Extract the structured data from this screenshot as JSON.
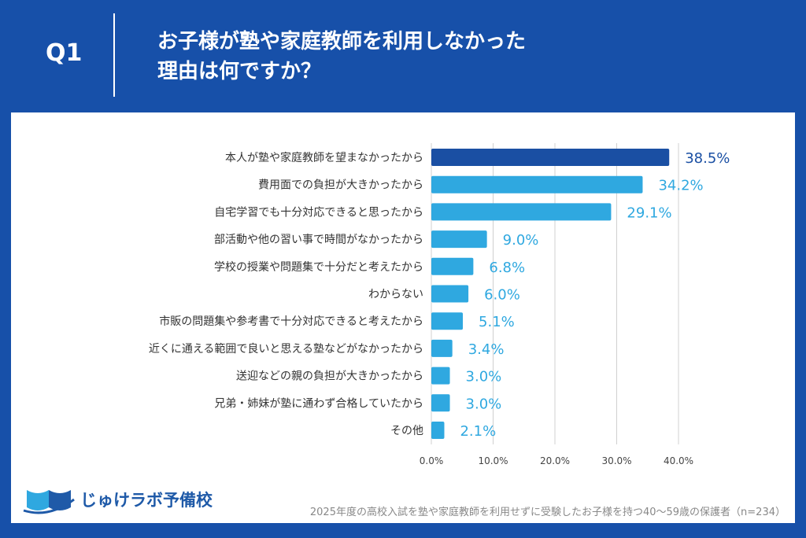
{
  "header": {
    "q_label": "Q1",
    "title_line1": "お子様が塾や家庭教師を利用しなかった",
    "title_line2": "理由は何ですか？"
  },
  "footer": {
    "logo_text": "じゅけラボ予備校",
    "note": "2025年度の高校入試を塾や家庭教師を利用せずに受験したお子様を持つ40～59歳の保護者（n=234）"
  },
  "colors": {
    "background": "#1750a9",
    "top_bar": "#1a4fa3",
    "bars": "#2fa8e0",
    "top_label": "#1a4fa3",
    "label": "#2fa8e0"
  },
  "chart_data": {
    "type": "bar",
    "orientation": "horizontal",
    "categories": [
      "本人が塾や家庭教師を望まなかったから",
      "費用面での負担が大きかったから",
      "自宅学習でも十分対応できると思ったから",
      "部活動や他の習い事で時間がなかったから",
      "学校の授業や問題集で十分だと考えたから",
      "わからない",
      "市販の問題集や参考書で十分対応できると考えたから",
      "近くに通える範囲で良いと思える塾などがなかったから",
      "送迎などの親の負担が大きかったから",
      "兄弟・姉妹が塾に通わず合格していたから",
      "その他"
    ],
    "values": [
      38.5,
      34.2,
      29.1,
      9.0,
      6.8,
      6.0,
      5.1,
      3.4,
      3.0,
      3.0,
      2.1
    ],
    "value_labels": [
      "38.5%",
      "34.2%",
      "29.1%",
      "9.0%",
      "6.8%",
      "6.0%",
      "5.1%",
      "3.4%",
      "3.0%",
      "3.0%",
      "2.1%"
    ],
    "xlim": [
      0,
      40
    ],
    "xticks": [
      "0.0%",
      "10.0%",
      "20.0%",
      "30.0%",
      "40.0%"
    ],
    "grid": true
  }
}
